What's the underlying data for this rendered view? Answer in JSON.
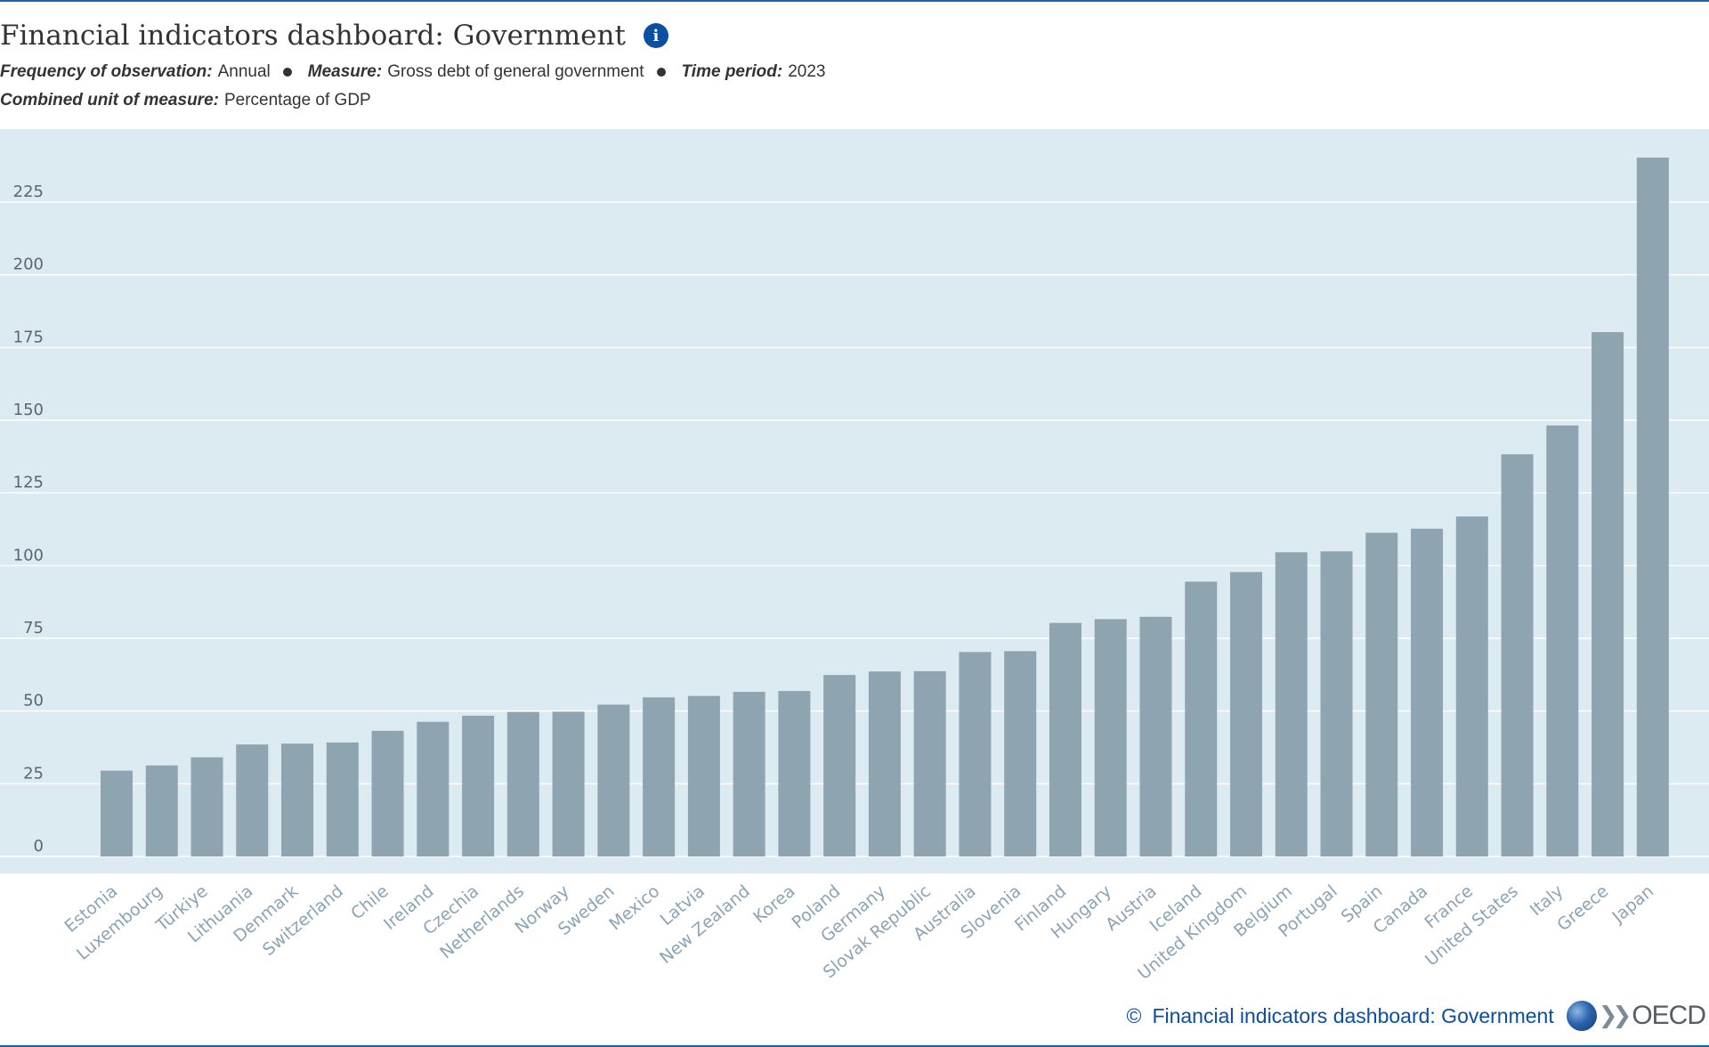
{
  "header": {
    "title": "Financial indicators dashboard: Government",
    "info_icon": "info-icon",
    "frequency_label": "Frequency of observation:",
    "frequency_value": "Annual",
    "measure_label": "Measure:",
    "measure_value": "Gross debt of general government",
    "time_label": "Time period:",
    "time_value": "2023",
    "unit_label": "Combined unit of measure:",
    "unit_value": "Percentage of GDP"
  },
  "footer": {
    "copyright_symbol": "©",
    "source_text": "Financial indicators dashboard: Government",
    "logo_text": "OECD"
  },
  "colors": {
    "plot_background": "#dbebf1",
    "bar": "#8ea4b0",
    "gridline": "#ffffff",
    "axis_text": "#5a6670",
    "category_text": "#8ba3b5",
    "accent": "#0b4ea2"
  },
  "chart_data": {
    "type": "bar",
    "title": "Financial indicators dashboard: Government",
    "xlabel": "",
    "ylabel": "",
    "ylim": [
      0,
      240
    ],
    "yticks": [
      0,
      25,
      50,
      75,
      100,
      125,
      150,
      175,
      200,
      225
    ],
    "grid": true,
    "legend": "none",
    "categories": [
      "Estonia",
      "Luxembourg",
      "Türkiye",
      "Lithuania",
      "Denmark",
      "Switzerland",
      "Chile",
      "Ireland",
      "Czechia",
      "Netherlands",
      "Norway",
      "Sweden",
      "Mexico",
      "Latvia",
      "New Zealand",
      "Korea",
      "Poland",
      "Germany",
      "Slovak Republic",
      "Australia",
      "Slovenia",
      "Finland",
      "Hungary",
      "Austria",
      "Iceland",
      "United Kingdom",
      "Belgium",
      "Portugal",
      "Spain",
      "Canada",
      "France",
      "United States",
      "Italy",
      "Greece",
      "Japan"
    ],
    "values": [
      29.5,
      31.3,
      34.1,
      38.5,
      38.8,
      39.2,
      43.2,
      46.3,
      48.4,
      49.7,
      49.8,
      52.2,
      54.7,
      55.2,
      56.6,
      56.9,
      62.4,
      63.6,
      63.7,
      70.3,
      70.6,
      80.3,
      81.6,
      82.4,
      94.5,
      97.8,
      104.6,
      104.9,
      111.3,
      112.7,
      116.9,
      138.3,
      148.2,
      180.3,
      240.3
    ]
  }
}
